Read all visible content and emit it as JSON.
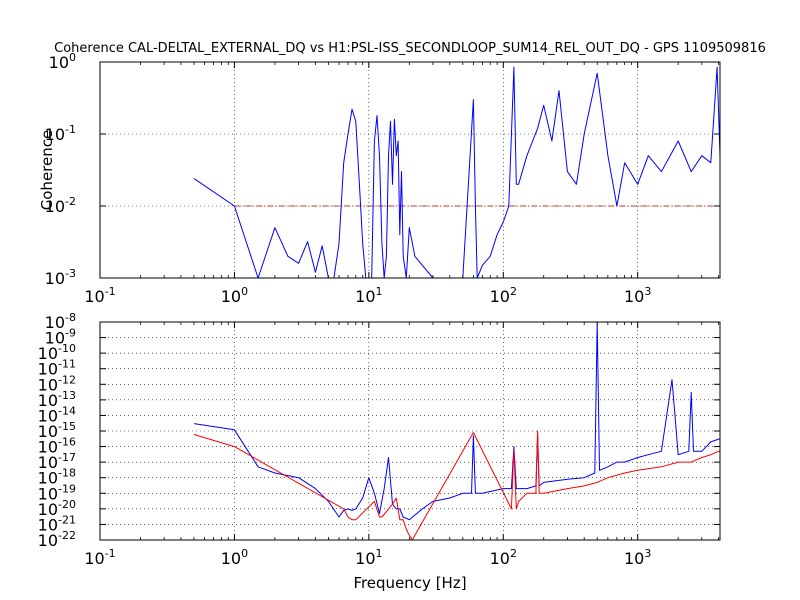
{
  "chart_data": [
    {
      "type": "line",
      "title": "Coherence CAL-DELTAL_EXTERNAL_DQ vs H1:PSL-ISS_SECONDLOOP_SUM14_REL_OUT_DQ - GPS 1109509816",
      "xlabel": "",
      "ylabel": "Coherence",
      "xscale": "log",
      "yscale": "log",
      "xlim": [
        0.1,
        4096
      ],
      "ylim": [
        0.001,
        1
      ],
      "grid": true,
      "x_tick_labels": [
        "10^-1",
        "10^0",
        "10^1",
        "10^2",
        "10^3"
      ],
      "y_tick_labels": [
        "10^-3",
        "10^-2",
        "10^-1",
        "10^0"
      ],
      "threshold_line": {
        "y": 0.01,
        "x_from": 1.0,
        "x_to": 4096,
        "color": "#c0392b",
        "style": "dash-dot"
      },
      "series": [
        {
          "color": "#0000ff",
          "x": [
            0.5,
            1.0,
            1.5,
            2.0,
            2.5,
            3.0,
            3.5,
            4.0,
            4.5,
            5.0,
            5.5,
            6.0,
            6.5,
            7.0,
            7.5,
            8.0,
            8.5,
            9.0,
            9.5,
            10.0,
            10.5,
            11.0,
            11.5,
            12.0,
            12.5,
            13.0,
            13.5,
            14.0,
            14.5,
            15.0,
            15.5,
            16.0,
            16.5,
            17.0,
            17.5,
            18.0,
            19.0,
            20.0,
            22.0,
            25.0,
            30.0,
            40.0,
            50.0,
            60.0,
            62.0,
            64.0,
            70.0,
            80.0,
            90.0,
            100.0,
            110.0,
            120.0,
            125.0,
            130.0,
            150.0,
            180.0,
            200.0,
            230.0,
            260.0,
            300.0,
            350.0,
            400.0,
            500.0,
            600.0,
            700.0,
            800.0,
            1000.0,
            1200.0,
            1500.0,
            2000.0,
            2500.0,
            3000.0,
            3500.0,
            3900.0,
            4096.0
          ],
          "y": [
            0.024,
            0.01,
            0.001,
            0.005,
            0.002,
            0.0016,
            0.0032,
            0.0012,
            0.0028,
            0.0008,
            0.001,
            0.003,
            0.04,
            0.1,
            0.22,
            0.15,
            0.02,
            0.003,
            0.0008,
            0.001,
            0.001,
            0.08,
            0.18,
            0.05,
            0.003,
            0.0005,
            0.002,
            0.05,
            0.15,
            0.02,
            0.16,
            0.05,
            0.08,
            0.004,
            0.03,
            0.002,
            0.0008,
            0.005,
            0.002,
            0.0015,
            0.001,
            0.0008,
            0.001,
            0.3,
            0.01,
            0.001,
            0.0015,
            0.002,
            0.004,
            0.006,
            0.01,
            0.85,
            0.02,
            0.02,
            0.05,
            0.12,
            0.25,
            0.08,
            0.4,
            0.03,
            0.02,
            0.1,
            0.7,
            0.05,
            0.01,
            0.04,
            0.02,
            0.05,
            0.03,
            0.08,
            0.03,
            0.05,
            0.04,
            0.85,
            0.05
          ]
        }
      ]
    },
    {
      "type": "line",
      "title": "",
      "xlabel": "Frequency [Hz]",
      "ylabel": "",
      "xscale": "log",
      "yscale": "log",
      "xlim": [
        0.1,
        4096
      ],
      "ylim": [
        1e-22,
        1e-08
      ],
      "grid": true,
      "x_tick_labels": [
        "10^-1",
        "10^0",
        "10^1",
        "10^2",
        "10^3"
      ],
      "y_tick_labels": [
        "10^-22",
        "10^-21",
        "10^-20",
        "10^-19",
        "10^-18",
        "10^-17",
        "10^-16",
        "10^-15",
        "10^-14",
        "10^-13",
        "10^-12",
        "10^-11",
        "10^-10",
        "10^-9",
        "10^-8"
      ],
      "series": [
        {
          "color": "#0000ff",
          "x": [
            0.5,
            1.0,
            1.5,
            2.0,
            3.0,
            4.0,
            5.0,
            6.0,
            6.5,
            7.0,
            7.5,
            8.0,
            9.0,
            10.0,
            11.0,
            12.0,
            13.0,
            14.0,
            15.0,
            16.0,
            17.0,
            18.0,
            20.0,
            25.0,
            30.0,
            40.0,
            50.0,
            58.0,
            60.0,
            62.0,
            70.0,
            100.0,
            115.0,
            120.0,
            125.0,
            150.0,
            175.0,
            180.0,
            185.0,
            200.0,
            300.0,
            400.0,
            480.0,
            500.0,
            520.0,
            600.0,
            700.0,
            800.0,
            1000.0,
            1200.0,
            1500.0,
            1800.0,
            2000.0,
            2400.0,
            2500.0,
            2600.0,
            3000.0,
            3500.0,
            4000.0,
            4096.0
          ],
          "y": [
            3e-15,
            1.2e-15,
            5e-18,
            2e-18,
            1e-18,
            2e-19,
            3e-20,
            3e-21,
            8e-21,
            1e-20,
            8e-21,
            1e-20,
            5e-20,
            1e-18,
            1e-19,
            5e-21,
            2e-19,
            2e-17,
            2e-20,
            1e-20,
            1e-20,
            3e-21,
            2e-21,
            1e-20,
            3e-20,
            5e-20,
            1e-19,
            1e-19,
            5e-16,
            1e-19,
            1e-19,
            2e-19,
            2e-19,
            1e-16,
            2e-19,
            2e-19,
            3e-19,
            6e-16,
            3e-19,
            5e-19,
            8e-19,
            1e-18,
            2e-18,
            1e-08,
            3e-18,
            5e-18,
            1e-17,
            1e-17,
            2e-17,
            3e-17,
            5e-17,
            2e-12,
            3e-17,
            5e-17,
            3e-13,
            5e-17,
            5e-17,
            2e-16,
            3e-16,
            3e-16
          ]
        },
        {
          "color": "#ff0000",
          "x": [
            0.5,
            1.0,
            6.5,
            7.0,
            7.5,
            8.0,
            11.0,
            12.0,
            12.5,
            15.0,
            16.0,
            17.0,
            18.0,
            19.0,
            20.0,
            21.0,
            60.0,
            115.0,
            120.0,
            125.0,
            130.0,
            150.0,
            175.0,
            180.0,
            185.0,
            200.0,
            300.0,
            400.0,
            500.0,
            600.0,
            800.0,
            1000.0,
            1500.0,
            2000.0,
            2500.0,
            3000.0,
            3500.0,
            4000.0,
            4096.0
          ],
          "y": [
            6e-16,
            1e-16,
            1e-20,
            3e-21,
            2e-21,
            2e-21,
            3e-20,
            3e-21,
            3e-21,
            2e-20,
            5e-20,
            2e-21,
            2e-21,
            5e-22,
            2e-22,
            1e-22,
            8e-16,
            1e-20,
            6e-17,
            1e-20,
            3e-20,
            1e-19,
            1e-19,
            1e-15,
            1e-19,
            1e-19,
            2e-19,
            3e-19,
            5e-19,
            1e-18,
            2e-18,
            3e-18,
            5e-18,
            1e-17,
            1e-17,
            2e-17,
            3e-17,
            5e-17,
            5e-17
          ]
        }
      ]
    }
  ]
}
